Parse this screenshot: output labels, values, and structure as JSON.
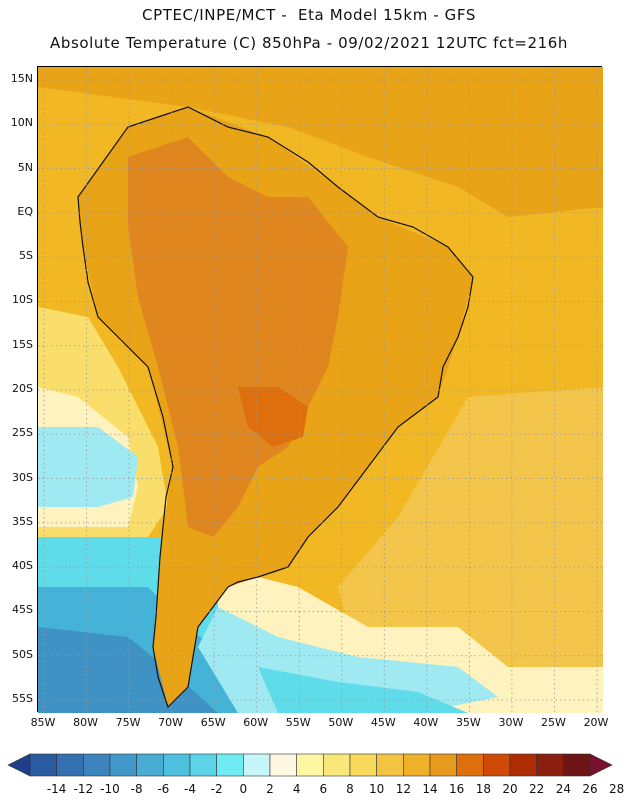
{
  "header": {
    "line1": "CPTEC/INPE/MCT -  Eta Model 15km - GFS",
    "line2": "Absolute Temperature (C) 850hPa - 09/02/2021 12UTC fct=216h"
  },
  "map": {
    "lat_ticks": [
      "15N",
      "10N",
      "5N",
      "EQ",
      "5S",
      "10S",
      "15S",
      "20S",
      "25S",
      "30S",
      "35S",
      "40S",
      "45S",
      "50S",
      "55S"
    ],
    "lon_ticks": [
      "85W",
      "80W",
      "75W",
      "70W",
      "65W",
      "60W",
      "55W",
      "50W",
      "45W",
      "40W",
      "35W",
      "30W",
      "25W",
      "20W"
    ],
    "field_colors": {
      "hot": "#e0861e",
      "warm": "#e9a317",
      "mild": "#f1b823",
      "ocean_warm": "#f3c54a",
      "cool": "#f9de6b",
      "pale": "#fef2bf",
      "cold": "#9ee9f2",
      "colder": "#5fdcea",
      "coldest": "#45b3d8",
      "deep": "#3e93c4",
      "coast": "#111111",
      "grid": "#999999"
    }
  },
  "colorbar": {
    "labels": [
      "-14",
      "-12",
      "-10",
      "-8",
      "-6",
      "-4",
      "-2",
      "0",
      "2",
      "4",
      "6",
      "8",
      "10",
      "12",
      "14",
      "16",
      "18",
      "20",
      "22",
      "24",
      "26",
      "28"
    ],
    "colors": [
      "#1f3f8c",
      "#2a5ba0",
      "#3570b0",
      "#3d84bc",
      "#4298c8",
      "#48acd4",
      "#4fc1de",
      "#5ad4e6",
      "#6eebf3",
      "#c6f5fa",
      "#fff8e0",
      "#fdf6a3",
      "#f9e77a",
      "#f8d95b",
      "#f2c441",
      "#efb128",
      "#e89a1e",
      "#df6f0d",
      "#cf4a06",
      "#b02c05",
      "#8a1f10",
      "#6d1514",
      "#7a1030"
    ]
  }
}
